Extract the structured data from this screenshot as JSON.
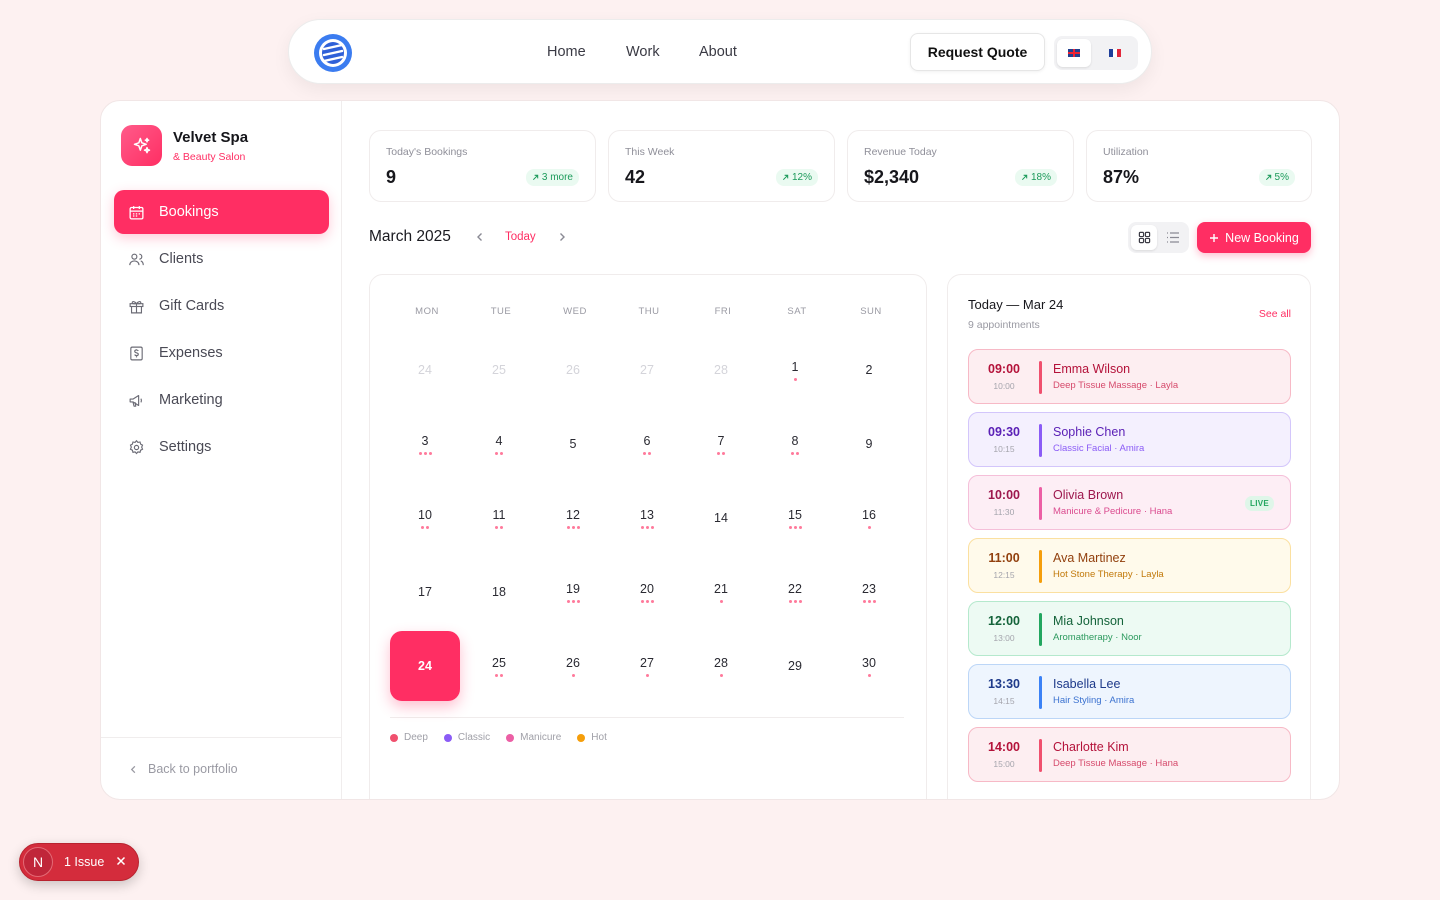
{
  "nav": {
    "links": [
      "Home",
      "Work",
      "About"
    ],
    "cta": "Request Quote",
    "languages": [
      "en",
      "fr"
    ]
  },
  "brand": {
    "name": "Velvet Spa",
    "subtitle": "& Beauty Salon",
    "accent": "#ff2e63"
  },
  "sidebar": {
    "items": [
      {
        "label": "Bookings",
        "icon": "calendar-icon",
        "active": true
      },
      {
        "label": "Clients",
        "icon": "users-icon"
      },
      {
        "label": "Gift Cards",
        "icon": "gift-icon"
      },
      {
        "label": "Expenses",
        "icon": "dollar-icon"
      },
      {
        "label": "Marketing",
        "icon": "megaphone-icon"
      },
      {
        "label": "Settings",
        "icon": "gear-icon"
      }
    ],
    "back": "Back to portfolio"
  },
  "stats": [
    {
      "label": "Today's Bookings",
      "value": "9",
      "badge": "3 more"
    },
    {
      "label": "This Week",
      "value": "42",
      "badge": "12%"
    },
    {
      "label": "Revenue Today",
      "value": "$2,340",
      "badge": "18%"
    },
    {
      "label": "Utilization",
      "value": "87%",
      "badge": "5%"
    }
  ],
  "calendar": {
    "month": "March 2025",
    "today_label": "Today",
    "weekdays": [
      "MON",
      "TUE",
      "WED",
      "THU",
      "FRI",
      "SAT",
      "SUN"
    ],
    "days": [
      {
        "d": "24",
        "muted": true,
        "dots": 0
      },
      {
        "d": "25",
        "muted": true,
        "dots": 0
      },
      {
        "d": "26",
        "muted": true,
        "dots": 0
      },
      {
        "d": "27",
        "muted": true,
        "dots": 0
      },
      {
        "d": "28",
        "muted": true,
        "dots": 0
      },
      {
        "d": "1",
        "dots": 1
      },
      {
        "d": "2",
        "dots": 0
      },
      {
        "d": "3",
        "dots": 3
      },
      {
        "d": "4",
        "dots": 2
      },
      {
        "d": "5",
        "dots": 0
      },
      {
        "d": "6",
        "dots": 2
      },
      {
        "d": "7",
        "dots": 2
      },
      {
        "d": "8",
        "dots": 2
      },
      {
        "d": "9",
        "dots": 0
      },
      {
        "d": "10",
        "dots": 2
      },
      {
        "d": "11",
        "dots": 2
      },
      {
        "d": "12",
        "dots": 3
      },
      {
        "d": "13",
        "dots": 3
      },
      {
        "d": "14",
        "dots": 0
      },
      {
        "d": "15",
        "dots": 3
      },
      {
        "d": "16",
        "dots": 1
      },
      {
        "d": "17",
        "dots": 0
      },
      {
        "d": "18",
        "dots": 0
      },
      {
        "d": "19",
        "dots": 3
      },
      {
        "d": "20",
        "dots": 3
      },
      {
        "d": "21",
        "dots": 1
      },
      {
        "d": "22",
        "dots": 3
      },
      {
        "d": "23",
        "dots": 3
      },
      {
        "d": "24",
        "today": true,
        "dots": 0
      },
      {
        "d": "25",
        "dots": 2
      },
      {
        "d": "26",
        "dots": 1
      },
      {
        "d": "27",
        "dots": 1
      },
      {
        "d": "28",
        "dots": 1
      },
      {
        "d": "29",
        "dots": 0
      },
      {
        "d": "30",
        "dots": 1
      }
    ],
    "legend": [
      {
        "label": "Deep",
        "color": "#f0506e"
      },
      {
        "label": "Classic",
        "color": "#8b5cf6"
      },
      {
        "label": "Manicure",
        "color": "#ec5fa5"
      },
      {
        "label": "Hot",
        "color": "#f59e0b"
      }
    ]
  },
  "toolbar": {
    "new_booking": "New Booking"
  },
  "appointments": {
    "title": "Today — Mar 24",
    "subtitle": "9 appointments",
    "see_all": "See all",
    "items": [
      {
        "start": "09:00",
        "end": "10:00",
        "name": "Emma Wilson",
        "detail": "Deep Tissue Massage · Layla",
        "bg": "#fdeef1",
        "border": "#f7b9c6",
        "accent": "#f0506e",
        "text": "#b4123a",
        "sub": "#d64a6c"
      },
      {
        "start": "09:30",
        "end": "10:15",
        "name": "Sophie Chen",
        "detail": "Classic Facial · Amira",
        "bg": "#f4f0fe",
        "border": "#d3c6fb",
        "accent": "#8b5cf6",
        "text": "#5b21b6",
        "sub": "#8b5cf6"
      },
      {
        "start": "10:00",
        "end": "11:30",
        "name": "Olivia Brown",
        "detail": "Manicure & Pedicure · Hana",
        "bg": "#fdeef5",
        "border": "#f5bfd9",
        "accent": "#ec5fa5",
        "text": "#9d174d",
        "sub": "#db4b8f",
        "live": "LIVE"
      },
      {
        "start": "11:00",
        "end": "12:15",
        "name": "Ava Martinez",
        "detail": "Hot Stone Therapy · Layla",
        "bg": "#fffaeb",
        "border": "#fbe0a0",
        "accent": "#f59e0b",
        "text": "#92400e",
        "sub": "#c2790a"
      },
      {
        "start": "12:00",
        "end": "13:00",
        "name": "Mia Johnson",
        "detail": "Aromatherapy · Noor",
        "bg": "#edfaf3",
        "border": "#b5e9cd",
        "accent": "#22a65f",
        "text": "#14633a",
        "sub": "#2c9a5e"
      },
      {
        "start": "13:30",
        "end": "14:15",
        "name": "Isabella Lee",
        "detail": "Hair Styling · Amira",
        "bg": "#eef5fe",
        "border": "#bcd6f7",
        "accent": "#3b82f6",
        "text": "#1e3a8a",
        "sub": "#3b72d0"
      },
      {
        "start": "14:00",
        "end": "15:00",
        "name": "Charlotte Kim",
        "detail": "Deep Tissue Massage · Hana",
        "bg": "#fdeef1",
        "border": "#f7b9c6",
        "accent": "#f0506e",
        "text": "#b4123a",
        "sub": "#d64a6c"
      }
    ]
  },
  "issue": {
    "badge": "N",
    "label": "1 Issue"
  }
}
